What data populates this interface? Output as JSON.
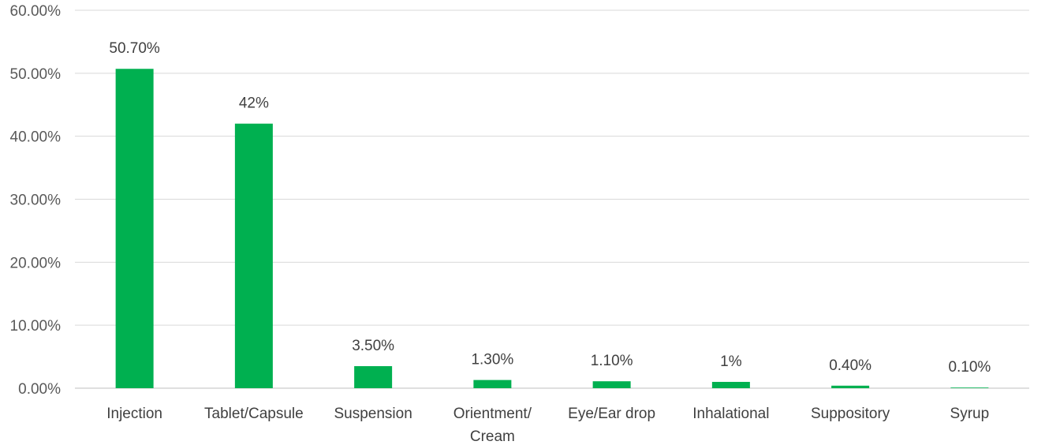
{
  "chart_data": {
    "type": "bar",
    "categories": [
      [
        "Injection"
      ],
      [
        "Tablet/Capsule"
      ],
      [
        "Suspension"
      ],
      [
        "Orientment/",
        "Cream"
      ],
      [
        "Eye/Ear drop"
      ],
      [
        "Inhalational"
      ],
      [
        "Suppository"
      ],
      [
        "Syrup"
      ]
    ],
    "values": [
      50.7,
      42,
      3.5,
      1.3,
      1.1,
      1,
      0.4,
      0.1
    ],
    "data_labels": [
      "50.70%",
      "42%",
      "3.50%",
      "1.30%",
      "1.10%",
      "1%",
      "0.40%",
      "0.10%"
    ],
    "y_ticks": [
      "0.00%",
      "10.00%",
      "20.00%",
      "30.00%",
      "40.00%",
      "50.00%",
      "60.00%"
    ],
    "ylim": [
      0,
      60
    ],
    "grid": true,
    "legend": "none",
    "colors": {
      "bar": "#00b050",
      "grid": "#d9d9d9",
      "axis": "#bfbfbf"
    }
  }
}
